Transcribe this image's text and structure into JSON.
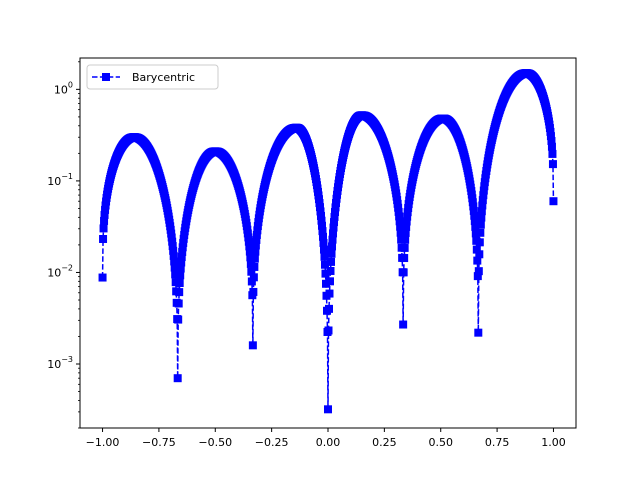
{
  "chart_data": {
    "type": "line",
    "title": "",
    "xlabel": "",
    "ylabel": "",
    "xlim": [
      -1.1,
      1.1
    ],
    "ylim": [
      0.0002,
      2.2
    ],
    "yscale": "log",
    "grid": false,
    "legend_position": "top-left",
    "x_ticks": [
      -1.0,
      -0.75,
      -0.5,
      -0.25,
      0.0,
      0.25,
      0.5,
      0.75,
      1.0
    ],
    "x_tick_labels": [
      "−1.00",
      "−0.75",
      "−0.50",
      "−0.25",
      "0.00",
      "0.25",
      "0.50",
      "0.75",
      "1.00"
    ],
    "y_ticks": [
      0.001,
      0.01,
      0.1,
      1
    ],
    "y_tick_labels": [
      {
        "base": "10",
        "exp": "−3"
      },
      {
        "base": "10",
        "exp": "−2"
      },
      {
        "base": "10",
        "exp": "−1"
      },
      {
        "base": "10",
        "exp": "0"
      }
    ],
    "color": "#0000ff",
    "marker": "square",
    "linestyle": "dashed",
    "series": [
      {
        "name": "Barycentric",
        "nodes": [
          -1.0,
          -0.6667,
          -0.3333,
          0.0,
          0.3333,
          0.6667,
          1.0
        ],
        "lobe_peaks": [
          {
            "x": -0.86,
            "y": 0.3
          },
          {
            "x": -0.5,
            "y": 0.21
          },
          {
            "x": -0.14,
            "y": 0.38
          },
          {
            "x": 0.15,
            "y": 0.52
          },
          {
            "x": 0.51,
            "y": 0.48
          },
          {
            "x": 0.88,
            "y": 1.5
          }
        ],
        "dip_minima": [
          {
            "x": -1.0,
            "y": 0.0088
          },
          {
            "x": -0.6667,
            "y": 0.0007
          },
          {
            "x": -0.3333,
            "y": 0.0016
          },
          {
            "x": 0.0,
            "y": 0.00032
          },
          {
            "x": 0.3333,
            "y": 0.0027
          },
          {
            "x": 0.6667,
            "y": 0.0022
          },
          {
            "x": 1.0,
            "y": 0.06
          }
        ]
      }
    ]
  }
}
